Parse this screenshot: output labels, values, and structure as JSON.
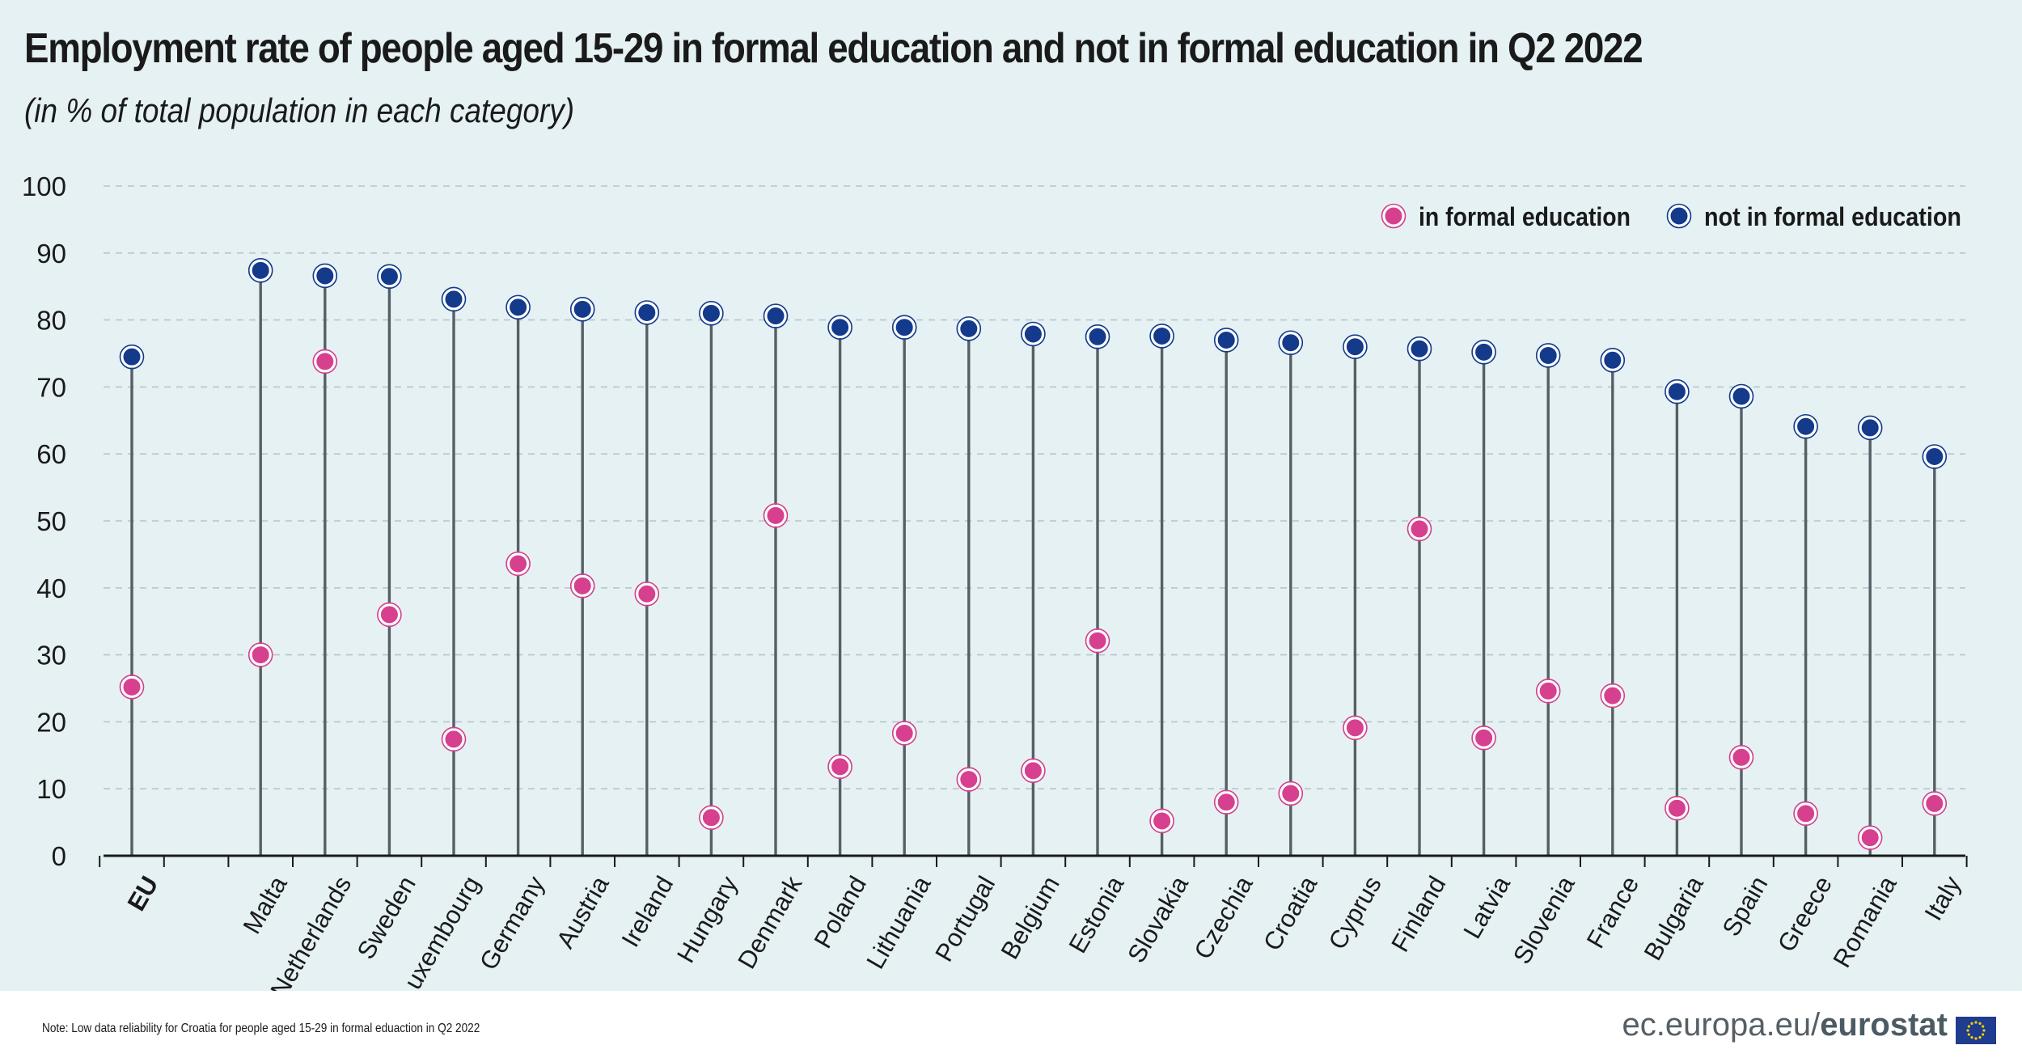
{
  "chart_data": {
    "type": "scatter",
    "title": "Employment rate of people aged 15-29 in formal education and not in formal education in Q2 2022",
    "subtitle": "(in % of total population in each category)",
    "ylim": [
      0,
      100
    ],
    "yticks": [
      0,
      10,
      20,
      30,
      40,
      50,
      60,
      70,
      80,
      90,
      100
    ],
    "grid": true,
    "legend_position": "top-right",
    "categories": [
      "EU",
      "",
      "Malta",
      "Netherlands",
      "Sweden",
      "Luxembourg",
      "Germany",
      "Austria",
      "Ireland",
      "Hungary",
      "Denmark",
      "Poland",
      "Lithuania",
      "Portugal",
      "Belgium",
      "Estonia",
      "Slovakia",
      "Czechia",
      "Croatia",
      "Cyprus",
      "Finland",
      "Latvia",
      "Slovenia",
      "France",
      "Bulgaria",
      "Spain",
      "Greece",
      "Romania",
      "Italy"
    ],
    "series": [
      {
        "name": "in formal education",
        "color": "#d6408f",
        "values": [
          25.2,
          null,
          30.0,
          73.8,
          36.0,
          17.4,
          43.6,
          40.3,
          39.1,
          5.7,
          50.8,
          13.3,
          18.3,
          11.4,
          12.7,
          32.1,
          5.2,
          8.0,
          9.3,
          19.1,
          48.8,
          17.6,
          24.6,
          23.9,
          7.1,
          14.7,
          6.3,
          2.7,
          7.8
        ]
      },
      {
        "name": "not in formal education",
        "color": "#143a8c",
        "values": [
          74.5,
          null,
          87.4,
          86.6,
          86.5,
          83.1,
          81.9,
          81.6,
          81.1,
          81.0,
          80.6,
          78.9,
          78.9,
          78.7,
          77.9,
          77.5,
          77.6,
          77.0,
          76.6,
          76.0,
          75.7,
          75.2,
          74.7,
          74.0,
          69.3,
          68.6,
          64.1,
          63.9,
          59.6
        ]
      }
    ],
    "emphasized_category": "EU"
  },
  "footer": {
    "note": "Note: Low data reliability for Croatia for people aged 15-29 in formal eduaction in Q2 2022",
    "source_domain": "ec.europa.eu/",
    "source_brand": "eurostat"
  },
  "colors": {
    "background": "#e5f1f3",
    "stem": "#565f66",
    "gridline": "#b7c6cc",
    "axis": "#1a1a1a",
    "flag": "#1f3c8f",
    "flag_stars": "#f4d100"
  }
}
